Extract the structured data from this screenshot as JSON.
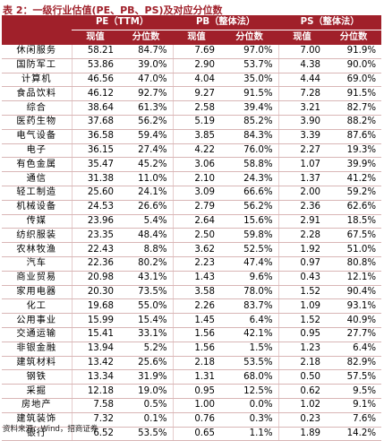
{
  "title": "表 2：一级行业估值(PE、PB、PS)及对应分位数",
  "header": {
    "group_pe": "PE（TTM）",
    "group_pb": "PB（整体法）",
    "group_ps": "PS（整体法）",
    "current": "现值",
    "percentile": "分位数"
  },
  "rows": [
    {
      "name": "休闲服务",
      "pe": "58.21",
      "pe_pct": "84.7%",
      "pb": "7.69",
      "pb_pct": "97.0%",
      "ps": "7.00",
      "ps_pct": "91.9%"
    },
    {
      "name": "国防军工",
      "pe": "53.86",
      "pe_pct": "39.0%",
      "pb": "2.90",
      "pb_pct": "53.7%",
      "ps": "4.38",
      "ps_pct": "90.0%"
    },
    {
      "name": "计算机",
      "pe": "46.56",
      "pe_pct": "47.0%",
      "pb": "4.04",
      "pb_pct": "35.0%",
      "ps": "4.44",
      "ps_pct": "69.0%"
    },
    {
      "name": "食品饮料",
      "pe": "46.12",
      "pe_pct": "92.7%",
      "pb": "9.27",
      "pb_pct": "91.5%",
      "ps": "7.28",
      "ps_pct": "91.5%"
    },
    {
      "name": "综合",
      "pe": "38.64",
      "pe_pct": "61.3%",
      "pb": "2.58",
      "pb_pct": "39.4%",
      "ps": "3.21",
      "ps_pct": "82.7%"
    },
    {
      "name": "医药生物",
      "pe": "37.68",
      "pe_pct": "56.2%",
      "pb": "5.19",
      "pb_pct": "85.2%",
      "ps": "3.90",
      "ps_pct": "88.2%"
    },
    {
      "name": "电气设备",
      "pe": "36.58",
      "pe_pct": "59.4%",
      "pb": "3.85",
      "pb_pct": "84.3%",
      "ps": "3.39",
      "ps_pct": "87.6%"
    },
    {
      "name": "电子",
      "pe": "36.15",
      "pe_pct": "27.4%",
      "pb": "4.22",
      "pb_pct": "76.0%",
      "ps": "2.27",
      "ps_pct": "19.3%"
    },
    {
      "name": "有色金属",
      "pe": "35.47",
      "pe_pct": "45.2%",
      "pb": "3.06",
      "pb_pct": "58.8%",
      "ps": "1.07",
      "ps_pct": "39.9%"
    },
    {
      "name": "通信",
      "pe": "31.38",
      "pe_pct": "11.0%",
      "pb": "2.10",
      "pb_pct": "24.3%",
      "ps": "1.37",
      "ps_pct": "41.2%"
    },
    {
      "name": "轻工制造",
      "pe": "25.60",
      "pe_pct": "24.1%",
      "pb": "3.09",
      "pb_pct": "66.6%",
      "ps": "2.00",
      "ps_pct": "59.2%"
    },
    {
      "name": "机械设备",
      "pe": "24.53",
      "pe_pct": "26.6%",
      "pb": "2.79",
      "pb_pct": "56.2%",
      "ps": "2.36",
      "ps_pct": "62.6%"
    },
    {
      "name": "传媒",
      "pe": "23.96",
      "pe_pct": "5.4%",
      "pb": "2.64",
      "pb_pct": "15.6%",
      "ps": "2.91",
      "ps_pct": "18.5%"
    },
    {
      "name": "纺织服装",
      "pe": "23.35",
      "pe_pct": "48.4%",
      "pb": "2.50",
      "pb_pct": "59.8%",
      "ps": "2.28",
      "ps_pct": "67.5%"
    },
    {
      "name": "农林牧渔",
      "pe": "22.43",
      "pe_pct": "8.8%",
      "pb": "3.62",
      "pb_pct": "52.5%",
      "ps": "1.92",
      "ps_pct": "51.0%"
    },
    {
      "name": "汽车",
      "pe": "22.36",
      "pe_pct": "80.2%",
      "pb": "2.23",
      "pb_pct": "47.4%",
      "ps": "0.97",
      "ps_pct": "80.8%"
    },
    {
      "name": "商业贸易",
      "pe": "20.98",
      "pe_pct": "43.1%",
      "pb": "1.43",
      "pb_pct": "9.6%",
      "ps": "0.43",
      "ps_pct": "12.1%"
    },
    {
      "name": "家用电器",
      "pe": "20.30",
      "pe_pct": "73.5%",
      "pb": "3.58",
      "pb_pct": "78.0%",
      "ps": "1.52",
      "ps_pct": "90.4%"
    },
    {
      "name": "化工",
      "pe": "19.68",
      "pe_pct": "55.0%",
      "pb": "2.26",
      "pb_pct": "83.7%",
      "ps": "1.09",
      "ps_pct": "93.1%"
    },
    {
      "name": "公用事业",
      "pe": "15.99",
      "pe_pct": "15.4%",
      "pb": "1.45",
      "pb_pct": "6.4%",
      "ps": "1.52",
      "ps_pct": "40.9%"
    },
    {
      "name": "交通运输",
      "pe": "15.41",
      "pe_pct": "33.1%",
      "pb": "1.56",
      "pb_pct": "42.1%",
      "ps": "0.95",
      "ps_pct": "27.7%"
    },
    {
      "name": "非银金融",
      "pe": "13.94",
      "pe_pct": "5.2%",
      "pb": "1.56",
      "pb_pct": "1.5%",
      "ps": "1.23",
      "ps_pct": "6.4%"
    },
    {
      "name": "建筑材料",
      "pe": "13.42",
      "pe_pct": "25.6%",
      "pb": "2.18",
      "pb_pct": "53.5%",
      "ps": "2.18",
      "ps_pct": "82.9%"
    },
    {
      "name": "钢铁",
      "pe": "13.34",
      "pe_pct": "31.9%",
      "pb": "1.31",
      "pb_pct": "68.0%",
      "ps": "0.50",
      "ps_pct": "57.5%"
    },
    {
      "name": "采掘",
      "pe": "12.18",
      "pe_pct": "19.0%",
      "pb": "0.95",
      "pb_pct": "12.5%",
      "ps": "0.62",
      "ps_pct": "9.5%"
    },
    {
      "name": "房地产",
      "pe": "7.58",
      "pe_pct": "0.5%",
      "pb": "1.00",
      "pb_pct": "0.0%",
      "ps": "1.02",
      "ps_pct": "9.1%"
    },
    {
      "name": "建筑装饰",
      "pe": "7.32",
      "pe_pct": "0.1%",
      "pb": "0.76",
      "pb_pct": "0.3%",
      "ps": "0.23",
      "ps_pct": "7.6%"
    },
    {
      "name": "银行",
      "pe": "6.52",
      "pe_pct": "53.5%",
      "pb": "0.65",
      "pb_pct": "1.1%",
      "ps": "1.89",
      "ps_pct": "14.2%"
    }
  ],
  "source": "资料来源：Wind，招商证券"
}
